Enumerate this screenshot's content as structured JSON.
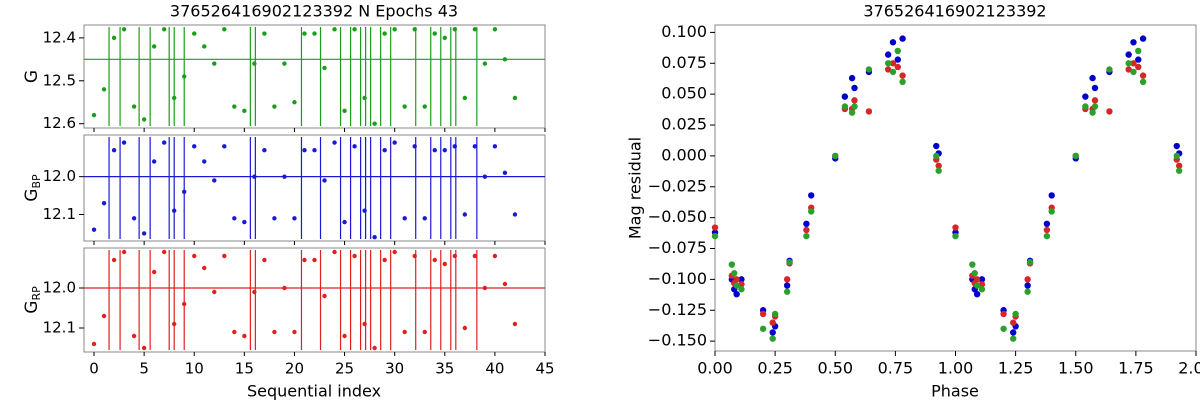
{
  "chart_data": [
    {
      "type": "panels",
      "title": "376526416902123392 N Epochs 43",
      "xlabel": "Sequential index",
      "xlim": [
        -1,
        45
      ],
      "xticks": [
        0,
        5,
        10,
        15,
        20,
        25,
        30,
        35,
        40,
        45
      ],
      "x": [
        0,
        1,
        2,
        3,
        4,
        5,
        6,
        7,
        8,
        9,
        10,
        11,
        12,
        13,
        14,
        15,
        16,
        17,
        18,
        19,
        20,
        21,
        22,
        23,
        24,
        25,
        26,
        27,
        28,
        29,
        30,
        31,
        32,
        33,
        34,
        35,
        36,
        37,
        38,
        39,
        40,
        41,
        42
      ],
      "vlines": [
        1.5,
        2.6,
        4.5,
        5.6,
        7.5,
        8.0,
        9.0,
        15.6,
        16.1,
        20.7,
        22.6,
        24.6,
        25.6,
        26.6,
        27.1,
        27.6,
        28.6,
        29.6,
        32.1,
        33.6,
        34.6,
        35.6,
        36.1,
        38.2
      ],
      "panels": [
        {
          "ylabel": "G",
          "color": "#1a9e1a",
          "mean": 12.45,
          "ylim": [
            12.61,
            12.37
          ],
          "yticks": [
            12.4,
            12.5,
            12.6
          ],
          "values": [
            12.58,
            12.52,
            12.4,
            12.38,
            12.56,
            12.59,
            12.42,
            12.38,
            12.54,
            12.49,
            12.39,
            12.42,
            12.46,
            12.38,
            12.56,
            12.57,
            12.46,
            12.39,
            12.56,
            12.46,
            12.55,
            12.39,
            12.39,
            12.47,
            12.38,
            12.57,
            12.38,
            12.54,
            12.6,
            12.39,
            12.38,
            12.56,
            12.38,
            12.56,
            12.39,
            12.4,
            12.38,
            12.54,
            12.38,
            12.46,
            12.38,
            12.45,
            12.54
          ]
        },
        {
          "ylabel": "G",
          "ylabel_sub": "BP",
          "color": "#1a1ad6",
          "mean": 12.0,
          "ylim": [
            12.17,
            11.89
          ],
          "yticks": [
            {
              "value": 12.0,
              "label": "12.0"
            },
            12.1
          ],
          "values": [
            12.14,
            12.07,
            11.93,
            11.91,
            12.11,
            12.15,
            11.96,
            11.91,
            12.09,
            12.04,
            11.92,
            11.96,
            12.01,
            11.92,
            12.11,
            12.12,
            12.0,
            11.93,
            12.11,
            12.0,
            12.11,
            11.93,
            11.93,
            12.01,
            11.91,
            12.12,
            11.92,
            12.09,
            12.16,
            11.93,
            11.91,
            12.11,
            11.92,
            12.11,
            11.93,
            11.93,
            11.92,
            12.1,
            11.92,
            12.0,
            11.92,
            11.99,
            12.1
          ]
        },
        {
          "ylabel": "G",
          "ylabel_sub": "RP",
          "color": "#e02020",
          "mean": 12.0,
          "ylim": [
            12.16,
            11.9
          ],
          "yticks": [
            {
              "value": 12.0,
              "label": "12.0"
            },
            12.1
          ],
          "values": [
            12.14,
            12.07,
            11.93,
            11.91,
            12.12,
            12.15,
            11.96,
            11.91,
            12.09,
            12.04,
            11.92,
            11.95,
            12.01,
            11.92,
            12.11,
            12.12,
            12.01,
            11.93,
            12.11,
            12.0,
            12.11,
            11.93,
            11.93,
            12.02,
            11.91,
            12.12,
            11.92,
            12.09,
            12.15,
            11.93,
            11.91,
            12.11,
            11.92,
            12.11,
            11.93,
            11.94,
            11.92,
            12.1,
            11.92,
            12.0,
            11.92,
            11.99,
            12.09
          ]
        }
      ]
    },
    {
      "type": "scatter",
      "title": "376526416902123392",
      "xlabel": "Phase",
      "ylabel": "Mag residual",
      "xlim": [
        0,
        2.0
      ],
      "ylim": [
        -0.158,
        0.106
      ],
      "xticks": [
        {
          "value": 0,
          "label": "0.00"
        },
        0.25,
        {
          "value": 0.5,
          "label": "0.50"
        },
        0.75,
        {
          "value": 1.0,
          "label": "1.00"
        },
        1.25,
        {
          "value": 1.5,
          "label": "1.50"
        },
        1.75,
        {
          "value": 2.0,
          "label": "2.00"
        }
      ],
      "yticks": [
        {
          "value": 0.1,
          "label": "0.100"
        },
        0.075,
        {
          "value": 0.05,
          "label": "0.050"
        },
        0.025,
        {
          "value": 0,
          "label": "0.000"
        },
        {
          "value": -0.025,
          "label": "−0.025"
        },
        {
          "value": -0.05,
          "label": "−0.050"
        },
        {
          "value": -0.075,
          "label": "−0.075"
        },
        {
          "value": -0.1,
          "label": "−0.100"
        },
        {
          "value": -0.125,
          "label": "−0.125"
        },
        {
          "value": -0.15,
          "label": "−0.150"
        }
      ],
      "x": [
        0.0,
        0.07,
        0.08,
        0.09,
        0.11,
        0.2,
        0.24,
        0.25,
        0.3,
        0.31,
        0.38,
        0.4,
        0.5,
        0.54,
        0.57,
        0.58,
        0.64,
        0.72,
        0.74,
        0.76,
        0.78,
        0.92,
        0.93,
        1.0,
        1.07,
        1.08,
        1.09,
        1.11,
        1.2,
        1.24,
        1.25,
        1.3,
        1.31,
        1.38,
        1.4,
        1.5,
        1.54,
        1.57,
        1.58,
        1.64,
        1.72,
        1.74,
        1.76,
        1.78,
        1.92,
        1.93
      ],
      "series": [
        {
          "color": "#0000cc",
          "values": [
            -0.062,
            -0.1,
            -0.108,
            -0.112,
            -0.1,
            -0.125,
            -0.143,
            -0.138,
            -0.105,
            -0.085,
            -0.055,
            -0.032,
            -0.002,
            0.048,
            0.063,
            0.055,
            0.068,
            0.082,
            0.092,
            0.078,
            0.095,
            0.008,
            0.002,
            -0.062,
            -0.1,
            -0.108,
            -0.112,
            -0.1,
            -0.125,
            -0.143,
            -0.138,
            -0.105,
            -0.085,
            -0.055,
            -0.032,
            -0.002,
            0.048,
            0.063,
            0.055,
            0.068,
            0.082,
            0.092,
            0.078,
            0.095,
            0.008,
            0.002
          ]
        },
        {
          "color": "#d62728",
          "values": [
            -0.058,
            -0.097,
            -0.103,
            -0.1,
            -0.104,
            -0.128,
            -0.135,
            -0.13,
            -0.1,
            -0.087,
            -0.06,
            -0.042,
            0.0,
            0.038,
            0.038,
            0.045,
            0.036,
            0.07,
            0.075,
            0.072,
            0.065,
            -0.003,
            -0.008,
            -0.058,
            -0.097,
            -0.103,
            -0.1,
            -0.104,
            -0.128,
            -0.135,
            -0.13,
            -0.1,
            -0.087,
            -0.06,
            -0.042,
            0.0,
            0.038,
            0.038,
            0.045,
            0.036,
            0.07,
            0.075,
            0.072,
            0.065,
            -0.003,
            -0.008
          ]
        },
        {
          "color": "#2ca02c",
          "values": [
            -0.065,
            -0.088,
            -0.095,
            -0.105,
            -0.108,
            -0.14,
            -0.148,
            -0.128,
            -0.11,
            -0.086,
            -0.065,
            -0.045,
            0.0,
            0.04,
            0.035,
            0.04,
            0.07,
            0.075,
            0.068,
            0.085,
            0.06,
            0.0,
            -0.012,
            -0.065,
            -0.088,
            -0.095,
            -0.105,
            -0.108,
            -0.14,
            -0.148,
            -0.128,
            -0.11,
            -0.086,
            -0.065,
            -0.045,
            0.0,
            0.04,
            0.035,
            0.04,
            0.07,
            0.075,
            0.068,
            0.085,
            0.06,
            0.0,
            -0.012
          ]
        }
      ]
    }
  ]
}
